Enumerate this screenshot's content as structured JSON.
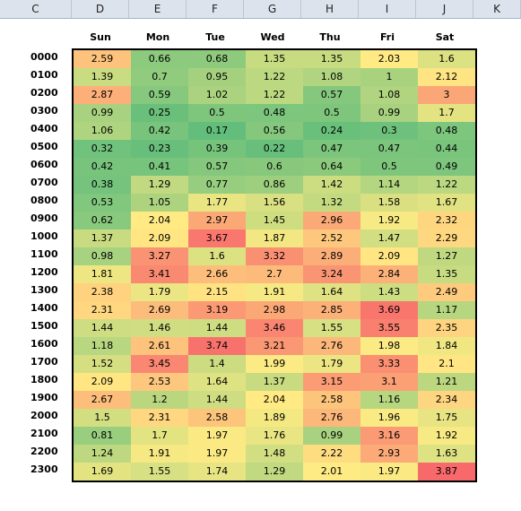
{
  "sheet": {
    "column_headers": [
      "C",
      "D",
      "E",
      "F",
      "G",
      "H",
      "I",
      "J",
      "K"
    ],
    "days": [
      "Sun",
      "Mon",
      "Tue",
      "Wed",
      "Thu",
      "Fri",
      "Sat"
    ],
    "hours": [
      "0000",
      "0100",
      "0200",
      "0300",
      "0400",
      "0500",
      "0600",
      "0700",
      "0800",
      "0900",
      "1000",
      "1100",
      "1200",
      "1300",
      "1400",
      "1500",
      "1600",
      "1700",
      "1800",
      "1900",
      "2000",
      "2100",
      "2200",
      "2300"
    ],
    "values": [
      [
        "2.59",
        "0.66",
        "0.68",
        "1.35",
        "1.35",
        "2.03",
        "1.6"
      ],
      [
        "1.39",
        "0.7",
        "0.95",
        "1.22",
        "1.08",
        "1",
        "2.12"
      ],
      [
        "2.87",
        "0.59",
        "1.02",
        "1.22",
        "0.57",
        "1.08",
        "3"
      ],
      [
        "0.99",
        "0.25",
        "0.5",
        "0.48",
        "0.5",
        "0.99",
        "1.7"
      ],
      [
        "1.06",
        "0.42",
        "0.17",
        "0.56",
        "0.24",
        "0.3",
        "0.48"
      ],
      [
        "0.32",
        "0.23",
        "0.39",
        "0.22",
        "0.47",
        "0.47",
        "0.44"
      ],
      [
        "0.42",
        "0.41",
        "0.57",
        "0.6",
        "0.64",
        "0.5",
        "0.49"
      ],
      [
        "0.38",
        "1.29",
        "0.77",
        "0.86",
        "1.42",
        "1.14",
        "1.22"
      ],
      [
        "0.53",
        "1.05",
        "1.77",
        "1.56",
        "1.32",
        "1.58",
        "1.67"
      ],
      [
        "0.62",
        "2.04",
        "2.97",
        "1.45",
        "2.96",
        "1.92",
        "2.32"
      ],
      [
        "1.37",
        "2.09",
        "3.67",
        "1.87",
        "2.52",
        "1.47",
        "2.29"
      ],
      [
        "0.98",
        "3.27",
        "1.6",
        "3.32",
        "2.89",
        "2.09",
        "1.27"
      ],
      [
        "1.81",
        "3.41",
        "2.66",
        "2.7",
        "3.24",
        "2.84",
        "1.35"
      ],
      [
        "2.38",
        "1.79",
        "2.15",
        "1.91",
        "1.64",
        "1.43",
        "2.49"
      ],
      [
        "2.31",
        "2.69",
        "3.19",
        "2.98",
        "2.85",
        "3.69",
        "1.17"
      ],
      [
        "1.44",
        "1.46",
        "1.44",
        "3.46",
        "1.55",
        "3.55",
        "2.35"
      ],
      [
        "1.18",
        "2.61",
        "3.74",
        "3.21",
        "2.76",
        "1.98",
        "1.84"
      ],
      [
        "1.52",
        "3.45",
        "1.4",
        "1.99",
        "1.79",
        "3.33",
        "2.1"
      ],
      [
        "2.09",
        "2.53",
        "1.64",
        "1.37",
        "3.15",
        "3.1",
        "1.21"
      ],
      [
        "2.67",
        "1.2",
        "1.44",
        "2.04",
        "2.58",
        "1.16",
        "2.34"
      ],
      [
        "1.5",
        "2.31",
        "2.58",
        "1.89",
        "2.76",
        "1.96",
        "1.75"
      ],
      [
        "0.81",
        "1.7",
        "1.97",
        "1.76",
        "0.99",
        "3.16",
        "1.92"
      ],
      [
        "1.24",
        "1.91",
        "1.97",
        "1.48",
        "2.22",
        "2.93",
        "1.63"
      ],
      [
        "1.69",
        "1.55",
        "1.74",
        "1.29",
        "2.01",
        "1.97",
        "3.87"
      ]
    ]
  },
  "colors": {
    "scale_low": "#63be7b",
    "scale_mid": "#ffeb84",
    "scale_high": "#f8696b",
    "header_bg": "#dde3ec"
  }
}
